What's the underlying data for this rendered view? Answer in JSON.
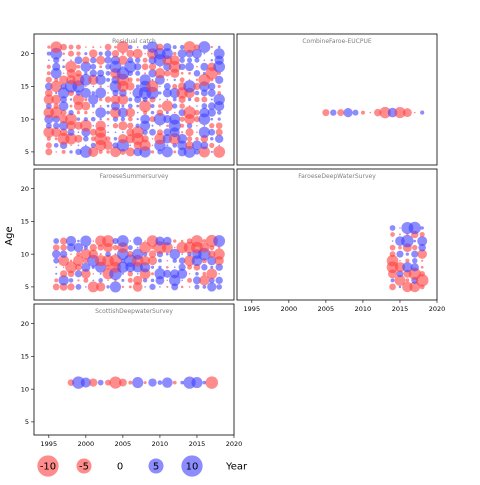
{
  "chart_data": {
    "type": "scatter",
    "subtype": "bubble residual grid",
    "ylabel": "Age",
    "xlabel": "Year",
    "xlim": [
      1993,
      2020
    ],
    "ylim": [
      3,
      23
    ],
    "x_ticks": [
      1995,
      2000,
      2005,
      2010,
      2015,
      2020
    ],
    "y_ticks": [
      5,
      10,
      15,
      20
    ],
    "colors": {
      "positive": "#4040ff",
      "negative": "#ff4040"
    },
    "legend": {
      "placement": "bottom",
      "title": "Year",
      "entries": [
        {
          "label": "-10",
          "value": -10
        },
        {
          "label": "-5",
          "value": -5
        },
        {
          "label": "0",
          "value": 0
        },
        {
          "label": "5",
          "value": 5
        },
        {
          "label": "10",
          "value": 10
        }
      ]
    },
    "panels": [
      {
        "title": "Residual catch",
        "years": [
          1995,
          2018
        ],
        "ages": [
          5,
          21
        ],
        "seed": 11,
        "note": "bubbles at every age-year cell"
      },
      {
        "title": "CombineFaroe-EUCPUE",
        "years": [
          2005,
          2018
        ],
        "ages": [
          11,
          11
        ],
        "seed": 5
      },
      {
        "title": "FaroeseSummersurvey",
        "years": [
          1996,
          2018
        ],
        "ages": [
          5,
          12
        ],
        "seed": 23
      },
      {
        "title": "FaroeseDeepWaterSurvey",
        "years": [
          2014,
          2018
        ],
        "ages": [
          5,
          14
        ],
        "seed": 37
      },
      {
        "title": "ScottishDeepwaterSurvey",
        "years": [
          1998,
          2017
        ],
        "ages": [
          11,
          11
        ],
        "seed": 41
      }
    ]
  }
}
